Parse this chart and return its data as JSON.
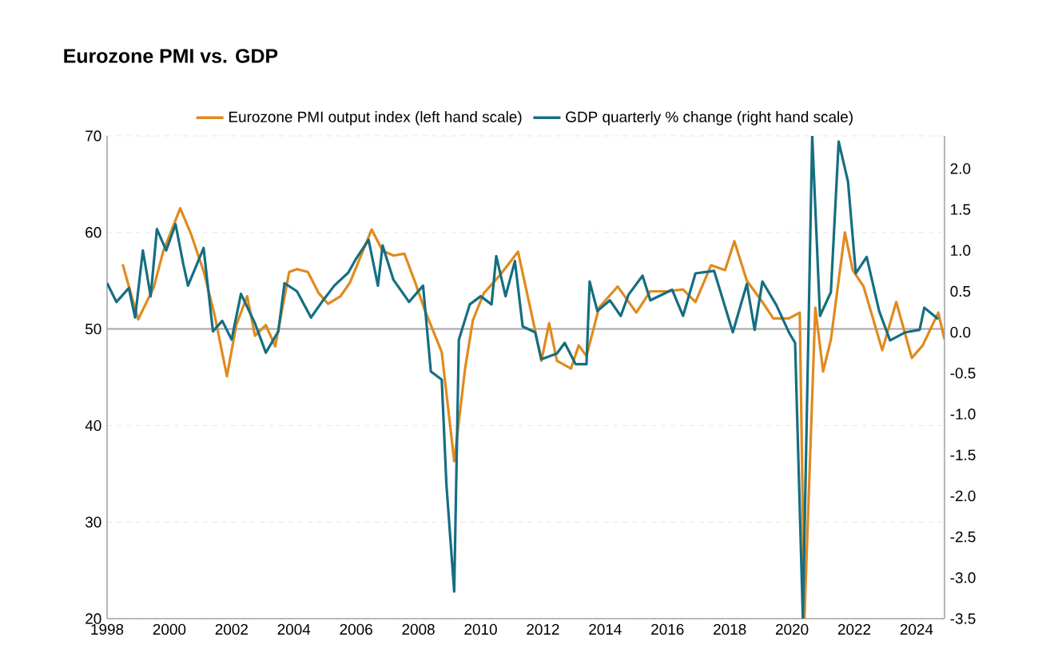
{
  "chart_data": {
    "type": "line",
    "title": "Eurozone PMI vs. GDP",
    "xlim": [
      1998,
      2024.9
    ],
    "xticks": [
      1998,
      2000,
      2002,
      2004,
      2006,
      2008,
      2010,
      2012,
      2014,
      2016,
      2018,
      2020,
      2022,
      2024
    ],
    "ylim": [
      20,
      70
    ],
    "yticks": [
      20,
      30,
      40,
      50,
      60,
      70
    ],
    "y2lim": [
      -3.5,
      2.4
    ],
    "y2ticks": [
      {
        "value": -3.5,
        "label": "-3.5"
      },
      {
        "value": -3,
        "label": "-3.0"
      },
      {
        "value": -2.5,
        "label": "-2.5"
      },
      {
        "value": -2,
        "label": "-2.0"
      },
      {
        "value": -1.5,
        "label": "-1.5"
      },
      {
        "value": -1,
        "label": "-1.0"
      },
      {
        "value": -0.5,
        "label": "-0.5"
      },
      {
        "value": 0,
        "label": "0.0"
      },
      {
        "value": 0.5,
        "label": "0.5"
      },
      {
        "value": 1,
        "label": "1.0"
      },
      {
        "value": 1.5,
        "label": "1.5"
      },
      {
        "value": 2,
        "label": "2.0"
      }
    ],
    "grid": "y",
    "legend": "top",
    "ref_lines": [
      {
        "axis": "y",
        "value": 50,
        "color": "#a6a6a6"
      }
    ],
    "series": [
      {
        "name": "Eurozone PMI output index (left hand scale)",
        "color": "#e08a1e",
        "x": [
          1998.5,
          1999.0,
          1999.5,
          1999.8,
          2000.35,
          2000.7,
          2001.1,
          2001.45,
          2001.85,
          2002.15,
          2002.5,
          2002.75,
          2003.1,
          2003.4,
          2003.85,
          2004.1,
          2004.45,
          2004.8,
          2005.1,
          2005.5,
          2005.8,
          2006.5,
          2006.85,
          2007.2,
          2007.55,
          2007.9,
          2008.2,
          2008.75,
          2009.15,
          2009.5,
          2009.75,
          2010.1,
          2010.6,
          2011.2,
          2011.7,
          2011.95,
          2012.2,
          2012.45,
          2012.9,
          2013.15,
          2013.4,
          2013.8,
          2014.4,
          2015.0,
          2015.45,
          2016.0,
          2016.5,
          2016.9,
          2017.4,
          2017.85,
          2018.15,
          2018.55,
          2019.05,
          2019.4,
          2019.9,
          2020.25,
          2020.4,
          2020.75,
          2021.0,
          2021.25,
          2021.7,
          2021.95,
          2022.3,
          2022.9,
          2023.35,
          2023.85,
          2024.2,
          2024.7,
          2024.9
        ],
        "values": [
          56.7,
          51,
          54.3,
          58,
          62.5,
          59.8,
          56,
          51.5,
          45.1,
          50.4,
          53.4,
          49.3,
          50.4,
          48.2,
          55.9,
          56.2,
          55.9,
          53.7,
          52.6,
          53.4,
          54.8,
          60.3,
          58.1,
          57.6,
          57.8,
          54.8,
          52,
          47.6,
          36.3,
          45.9,
          50.9,
          53.7,
          55.5,
          58,
          50.6,
          46.7,
          50.6,
          46.7,
          45.9,
          48.3,
          47.2,
          52.2,
          54.4,
          51.7,
          53.9,
          53.9,
          54.1,
          52.8,
          56.6,
          56.1,
          59.1,
          55,
          52.8,
          51.1,
          51.1,
          51.7,
          20,
          52.2,
          45.6,
          48.9,
          60,
          56.1,
          54.4,
          47.8,
          52.8,
          47,
          48.3,
          51.7,
          48.9
        ]
      },
      {
        "name": "GDP quarterly % change (right hand scale)",
        "color": "#156e82",
        "axis": "y2",
        "x": [
          1998.0,
          1998.3,
          1998.7,
          1998.9,
          1999.15,
          1999.4,
          1999.6,
          1999.9,
          2000.2,
          2000.45,
          2000.6,
          2001.1,
          2001.4,
          2001.7,
          2002.0,
          2002.3,
          2002.75,
          2003.1,
          2003.5,
          2003.7,
          2004.1,
          2004.55,
          2004.9,
          2005.3,
          2005.75,
          2006.0,
          2006.4,
          2006.7,
          2006.85,
          2007.2,
          2007.7,
          2008.15,
          2008.4,
          2008.75,
          2008.9,
          2009.15,
          2009.3,
          2009.65,
          2010.0,
          2010.35,
          2010.5,
          2010.8,
          2011.1,
          2011.35,
          2011.75,
          2011.95,
          2012.45,
          2012.7,
          2013.05,
          2013.4,
          2013.5,
          2013.75,
          2014.15,
          2014.5,
          2014.75,
          2015.2,
          2015.45,
          2016.15,
          2016.5,
          2016.9,
          2017.5,
          2018.1,
          2018.55,
          2018.8,
          2019.05,
          2019.5,
          2019.9,
          2020.1,
          2020.35,
          2020.65,
          2020.9,
          2021.25,
          2021.5,
          2021.8,
          2022.05,
          2022.4,
          2022.8,
          2023.15,
          2023.65,
          2024.1,
          2024.25,
          2024.7
        ],
        "values": [
          0.6,
          0.37,
          0.54,
          0.18,
          1.0,
          0.44,
          1.26,
          1.0,
          1.32,
          0.83,
          0.57,
          1.03,
          0.01,
          0.14,
          -0.09,
          0.47,
          0.11,
          -0.25,
          0.01,
          0.6,
          0.5,
          0.18,
          0.37,
          0.57,
          0.73,
          0.9,
          1.13,
          0.57,
          1.06,
          0.64,
          0.37,
          0.57,
          -0.48,
          -0.58,
          -1.86,
          -3.17,
          -0.09,
          0.34,
          0.44,
          0.34,
          0.93,
          0.44,
          0.87,
          0.07,
          0,
          -0.33,
          -0.26,
          -0.13,
          -0.39,
          -0.39,
          0.62,
          0.26,
          0.39,
          0.2,
          0.46,
          0.69,
          0.39,
          0.52,
          0.2,
          0.72,
          0.75,
          0,
          0.59,
          0.03,
          0.62,
          0.33,
          0,
          -0.13,
          -3.5,
          2.4,
          0.2,
          0.49,
          2.33,
          1.84,
          0.72,
          0.92,
          0.26,
          -0.1,
          0,
          0.03,
          0.3,
          0.16
        ]
      }
    ]
  }
}
